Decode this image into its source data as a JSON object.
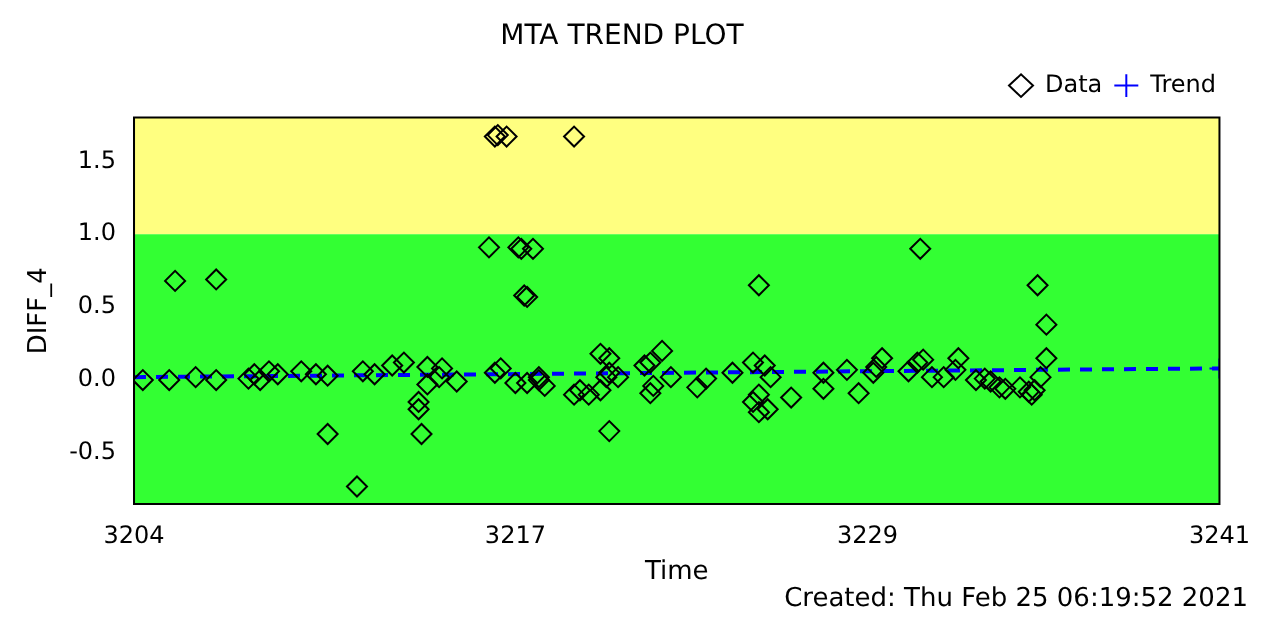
{
  "chart_data": {
    "type": "scatter",
    "title": "MTA TREND PLOT",
    "xlabel": "Time",
    "ylabel": "DIFF_4",
    "annotations": [
      "Created: Thu Feb 25 06:19:52 2021"
    ],
    "xlim": [
      3204,
      3241
    ],
    "xticks": [
      3204,
      3217,
      3229,
      3241
    ],
    "ylim": [
      -0.85,
      1.8
    ],
    "yticks": [
      {
        "value": -0.5,
        "label": "-0.5"
      },
      {
        "value": 0,
        "label": "0.0"
      },
      {
        "value": 0.5,
        "label": "0.5"
      },
      {
        "value": 1,
        "label": "1.0"
      },
      {
        "value": 1.5,
        "label": "1.5"
      }
    ],
    "grid": false,
    "legend": "top right",
    "bands": [
      {
        "axis": "y",
        "from": 1,
        "to": 1.8,
        "color": "#ffff80"
      },
      {
        "axis": "y",
        "from": -0.85,
        "to": 1,
        "color": "#33ff33"
      }
    ],
    "series": [
      {
        "name": "Data",
        "color": "#000000",
        "marker": "diamond",
        "x": [
          3205.4,
          3206.8,
          3204.3,
          3205.2,
          3206.1,
          3206.8,
          3207.9,
          3208.1,
          3208.3,
          3208.6,
          3208.9,
          3209.7,
          3210.2,
          3210.6,
          3210.6,
          3211.6,
          3211.8,
          3212.2,
          3212.8,
          3213.2,
          3213.7,
          3213.7,
          3214,
          3213.8,
          3214.0,
          3214.4,
          3214.5,
          3215,
          3216.1,
          3216.3,
          3216.5,
          3216.3,
          3216.4,
          3216.7,
          3217.1,
          3217.2,
          3217.6,
          3217.3,
          3217.4,
          3217.0,
          3217.4,
          3217.8,
          3218.0,
          3217.8,
          3219,
          3219.2,
          3219.5,
          3219.0,
          3219.9,
          3220.2,
          3219.9,
          3220.1,
          3220.5,
          3220.2,
          3220.2,
          3221.4,
          3221.6,
          3222,
          3221.7,
          3221.6,
          3222.3,
          3223.2,
          3223.5,
          3224.4,
          3225.1,
          3225.3,
          3225.3,
          3225.1,
          3225.3,
          3225.6,
          3225.5,
          3225.7,
          3226.4,
          3227.5,
          3227.5,
          3228.3,
          3228.7,
          3229.3,
          3229.5,
          3229.2,
          3230.8,
          3230.4,
          3230.7,
          3230.9,
          3231.2,
          3231.6,
          3232.1,
          3232,
          3232.7,
          3233.0,
          3233.2,
          3233.5,
          3233.7,
          3234.2,
          3234.5,
          3234.6,
          3234.7,
          3234.8,
          3235.1,
          3235.1,
          3234.9
        ],
        "values": [
          0.68,
          0.69,
          0,
          0,
          0.02,
          0,
          0.01,
          0.04,
          0,
          0.06,
          0.04,
          0.06,
          0.04,
          -0.37,
          0.03,
          -0.73,
          0.06,
          0.04,
          0.1,
          0.12,
          -0.15,
          -0.2,
          0.09,
          -0.37,
          -0.03,
          0.02,
          0.08,
          -0.01,
          0.91,
          0.05,
          0.08,
          1.67,
          1.68,
          1.67,
          0.91,
          0.9,
          0.9,
          0.58,
          0.57,
          -0.02,
          -0.02,
          0.02,
          -0.04,
          0,
          -0.1,
          -0.07,
          -0.1,
          1.67,
          -0.07,
          0.15,
          0.18,
          0.02,
          0.02,
          -0.35,
          0.05,
          0.1,
          0.12,
          0.2,
          -0.04,
          -0.09,
          0.02,
          -0.05,
          0.01,
          0.05,
          0.12,
          0.65,
          -0.1,
          -0.15,
          -0.22,
          -0.2,
          0.1,
          0.02,
          -0.12,
          0.05,
          -0.06,
          0.07,
          -0.09,
          0.09,
          0.15,
          0.05,
          0.9,
          0.06,
          0.12,
          0.14,
          0.02,
          0.02,
          0.15,
          0.07,
          0,
          0.01,
          -0.01,
          -0.05,
          -0.06,
          -0.05,
          -0.08,
          -0.1,
          -0.07,
          0.65,
          0.38,
          0.15,
          0.02
        ]
      },
      {
        "name": "Trend",
        "type": "line",
        "color": "#0000ff",
        "marker": "cross",
        "line_style": "dashed",
        "x": [
          3204,
          3241
        ],
        "values": [
          0.02,
          0.08
        ]
      }
    ]
  }
}
